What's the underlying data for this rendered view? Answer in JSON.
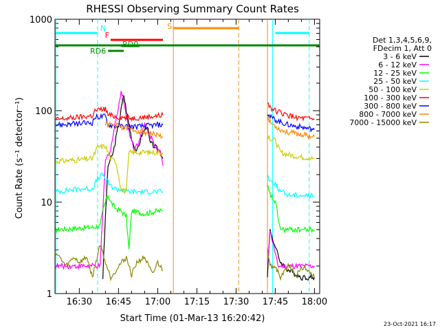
{
  "chart_data": {
    "type": "line",
    "title": "RHESSI Observing Summary Count Rates",
    "xlabel": "Start Time (01-Mar-13 16:20:42)",
    "ylabel": "Count Rate (s⁻¹ detector⁻¹)",
    "xlim_minutes": [
      20.7,
      122
    ],
    "ylim": [
      1,
      1000
    ],
    "yscale": "log",
    "x_ticks": [
      {
        "minutes": 30,
        "label": "16:30"
      },
      {
        "minutes": 45,
        "label": "16:45"
      },
      {
        "minutes": 60,
        "label": "17:00"
      },
      {
        "minutes": 75,
        "label": "17:15"
      },
      {
        "minutes": 90,
        "label": "17:30"
      },
      {
        "minutes": 105,
        "label": "17:45"
      },
      {
        "minutes": 120,
        "label": "18:00"
      }
    ],
    "y_ticks": [
      {
        "value": 1,
        "label": "1"
      },
      {
        "value": 10,
        "label": "10"
      },
      {
        "value": 100,
        "label": "100"
      },
      {
        "value": 1000,
        "label": "1000"
      }
    ],
    "legend_header": [
      "Det 1,3,4,5,6,9,",
      "FDecim 1, Att 0"
    ],
    "series": [
      {
        "name": "3 - 6 keV",
        "color": "#000000",
        "points": [
          [
            39,
            1.5
          ],
          [
            40,
            7
          ],
          [
            41,
            25
          ],
          [
            43,
            35
          ],
          [
            45,
            70
          ],
          [
            47,
            150
          ],
          [
            48,
            100
          ],
          [
            50,
            50
          ],
          [
            52,
            35
          ],
          [
            54,
            55
          ],
          [
            56,
            70
          ],
          [
            57,
            45
          ],
          [
            59,
            40
          ],
          [
            60,
            38
          ],
          [
            61,
            35
          ],
          [
            62,
            30
          ]
        ],
        "points2": [
          [
            102,
            1.6
          ],
          [
            103,
            5
          ],
          [
            105,
            3.2
          ],
          [
            107,
            2.2
          ],
          [
            110,
            1.8
          ],
          [
            115,
            1.5
          ],
          [
            120,
            1.5
          ]
        ]
      },
      {
        "name": "6 - 12 keV",
        "color": "#ff00ff",
        "points": [
          [
            21,
            2
          ],
          [
            30,
            2
          ],
          [
            38,
            2
          ],
          [
            39,
            8
          ],
          [
            40,
            28
          ],
          [
            42,
            38
          ],
          [
            44,
            80
          ],
          [
            46,
            160
          ],
          [
            47,
            130
          ],
          [
            49,
            60
          ],
          [
            51,
            38
          ],
          [
            53,
            48
          ],
          [
            55,
            70
          ],
          [
            57,
            55
          ],
          [
            59,
            42
          ],
          [
            61,
            35
          ],
          [
            62,
            25
          ]
        ],
        "points2": [
          [
            102,
            2
          ],
          [
            103,
            5
          ],
          [
            106,
            2
          ],
          [
            110,
            2
          ],
          [
            120,
            2
          ]
        ]
      },
      {
        "name": "12 - 25 keV",
        "color": "#00ff00",
        "points": [
          [
            21,
            5
          ],
          [
            30,
            5.2
          ],
          [
            35,
            5.3
          ],
          [
            38,
            5.5
          ],
          [
            39,
            8
          ],
          [
            40,
            10
          ],
          [
            41,
            12
          ],
          [
            42,
            10
          ],
          [
            44,
            8.5
          ],
          [
            46,
            8
          ],
          [
            48,
            7
          ],
          [
            49,
            3
          ],
          [
            50,
            8
          ],
          [
            55,
            7.5
          ],
          [
            60,
            8
          ],
          [
            62,
            8
          ]
        ],
        "points2": [
          [
            102,
            15
          ],
          [
            103,
            12
          ],
          [
            105,
            10
          ],
          [
            107,
            5
          ],
          [
            110,
            5
          ],
          [
            115,
            5
          ],
          [
            120,
            5
          ]
        ]
      },
      {
        "name": "25 - 50 keV",
        "color": "#00ffff",
        "points": [
          [
            21,
            13
          ],
          [
            30,
            14
          ],
          [
            35,
            14
          ],
          [
            37,
            18
          ],
          [
            39,
            20
          ],
          [
            40,
            18
          ],
          [
            42,
            15
          ],
          [
            44,
            14
          ],
          [
            46,
            13.5
          ],
          [
            50,
            13
          ],
          [
            55,
            13
          ],
          [
            60,
            13
          ],
          [
            62,
            13
          ]
        ],
        "points2": [
          [
            102,
            20
          ],
          [
            103,
            17
          ],
          [
            105,
            16
          ],
          [
            107,
            13
          ],
          [
            110,
            12
          ],
          [
            115,
            12
          ],
          [
            120,
            11.5
          ]
        ]
      },
      {
        "name": "50 - 100 keV",
        "color": "#cccc00",
        "points": [
          [
            21,
            28
          ],
          [
            30,
            29
          ],
          [
            35,
            30
          ],
          [
            37,
            40
          ],
          [
            40,
            41
          ],
          [
            42,
            30
          ],
          [
            44,
            28
          ],
          [
            46,
            14
          ],
          [
            48,
            13
          ],
          [
            49,
            35
          ],
          [
            55,
            35
          ],
          [
            60,
            35
          ],
          [
            62,
            35
          ]
        ],
        "points2": [
          [
            102,
            55
          ],
          [
            103,
            50
          ],
          [
            105,
            47
          ],
          [
            107,
            35
          ],
          [
            110,
            33
          ],
          [
            115,
            31
          ],
          [
            120,
            30
          ]
        ]
      },
      {
        "name": "100 - 300 keV",
        "color": "#ff0000",
        "points": [
          [
            21,
            80
          ],
          [
            30,
            85
          ],
          [
            35,
            88
          ],
          [
            36,
            100
          ],
          [
            40,
            105
          ],
          [
            41,
            90
          ],
          [
            45,
            85
          ],
          [
            50,
            83
          ],
          [
            55,
            85
          ],
          [
            60,
            88
          ],
          [
            62,
            90
          ]
        ],
        "points2": [
          [
            102,
            125
          ],
          [
            103,
            110
          ],
          [
            105,
            100
          ],
          [
            107,
            95
          ],
          [
            110,
            88
          ],
          [
            115,
            82
          ],
          [
            120,
            80
          ]
        ]
      },
      {
        "name": "300 - 800 keV",
        "color": "#0000ff",
        "points": [
          [
            21,
            70
          ],
          [
            30,
            72
          ],
          [
            35,
            74
          ],
          [
            36,
            85
          ],
          [
            40,
            87
          ],
          [
            41,
            70
          ],
          [
            45,
            68
          ],
          [
            50,
            67
          ],
          [
            55,
            68
          ],
          [
            60,
            70
          ],
          [
            62,
            70
          ]
        ],
        "points2": [
          [
            102,
            95
          ],
          [
            103,
            85
          ],
          [
            105,
            80
          ],
          [
            107,
            75
          ],
          [
            110,
            70
          ],
          [
            115,
            66
          ],
          [
            120,
            62
          ]
        ]
      },
      {
        "name": "800 - 7000 keV",
        "color": "#ff8800",
        "points": [
          [
            40,
            72
          ],
          [
            45,
            68
          ],
          [
            50,
            62
          ],
          [
            55,
            58
          ],
          [
            60,
            54
          ],
          [
            62,
            52
          ]
        ],
        "points2": [
          [
            102,
            85
          ],
          [
            103,
            75
          ],
          [
            105,
            68
          ],
          [
            107,
            62
          ],
          [
            110,
            58
          ],
          [
            115,
            55
          ],
          [
            120,
            52
          ]
        ]
      },
      {
        "name": "7000 - 15000 keV",
        "color": "#888800",
        "points": [
          [
            21,
            2.8
          ],
          [
            25,
            2
          ],
          [
            28,
            2.5
          ],
          [
            30,
            2.2
          ],
          [
            33,
            2.5
          ],
          [
            35,
            1.5
          ],
          [
            38,
            3.5
          ],
          [
            40,
            2.2
          ],
          [
            42,
            1.5
          ],
          [
            45,
            2
          ],
          [
            48,
            2.5
          ],
          [
            50,
            1.6
          ],
          [
            52,
            2.2
          ],
          [
            55,
            2.5
          ],
          [
            58,
            1.6
          ],
          [
            60,
            2.2
          ],
          [
            62,
            1.8
          ]
        ],
        "points2": [
          [
            102,
            3
          ],
          [
            103,
            2
          ],
          [
            105,
            2
          ],
          [
            107,
            1.5
          ],
          [
            110,
            2
          ],
          [
            113,
            1.6
          ],
          [
            116,
            2
          ],
          [
            120,
            1.5
          ]
        ]
      }
    ],
    "flags": [
      {
        "label": "N",
        "color": "#00ffff",
        "segments": [
          [
            21,
            37
          ],
          [
            105,
            118
          ]
        ],
        "level": "top"
      },
      {
        "label": "F",
        "color": "#ff0000",
        "segments": [
          [
            42,
            62
          ]
        ],
        "level": "second"
      },
      {
        "label": "RD0",
        "color": "#008800",
        "segments": [
          [
            46,
            53
          ]
        ],
        "level": "third"
      },
      {
        "label": "S",
        "color": "#ff8800",
        "segments": [
          [
            66,
            91
          ]
        ],
        "level": "upper"
      },
      {
        "label": "RD6",
        "color": "#008800",
        "segments": [
          [
            41,
            47
          ]
        ],
        "level": "fourth"
      }
    ],
    "full_green_flag_color": "#008800",
    "vlines": [
      {
        "minutes": 21,
        "color": "#00ffff",
        "style": "solid"
      },
      {
        "minutes": 37,
        "color": "#00ffff",
        "style": "dashed"
      },
      {
        "minutes": 66,
        "color": "#ff8800",
        "style": "solid"
      },
      {
        "minutes": 91,
        "color": "#ff8800",
        "style": "dashed"
      },
      {
        "minutes": 102,
        "color": "#ff8800",
        "style": "solid"
      },
      {
        "minutes": 104,
        "color": "#00ffff",
        "style": "solid"
      },
      {
        "minutes": 118,
        "color": "#00ffff",
        "style": "dashed"
      }
    ]
  },
  "footer": {
    "date_stamp": "23-Oct-2021 16:17"
  }
}
